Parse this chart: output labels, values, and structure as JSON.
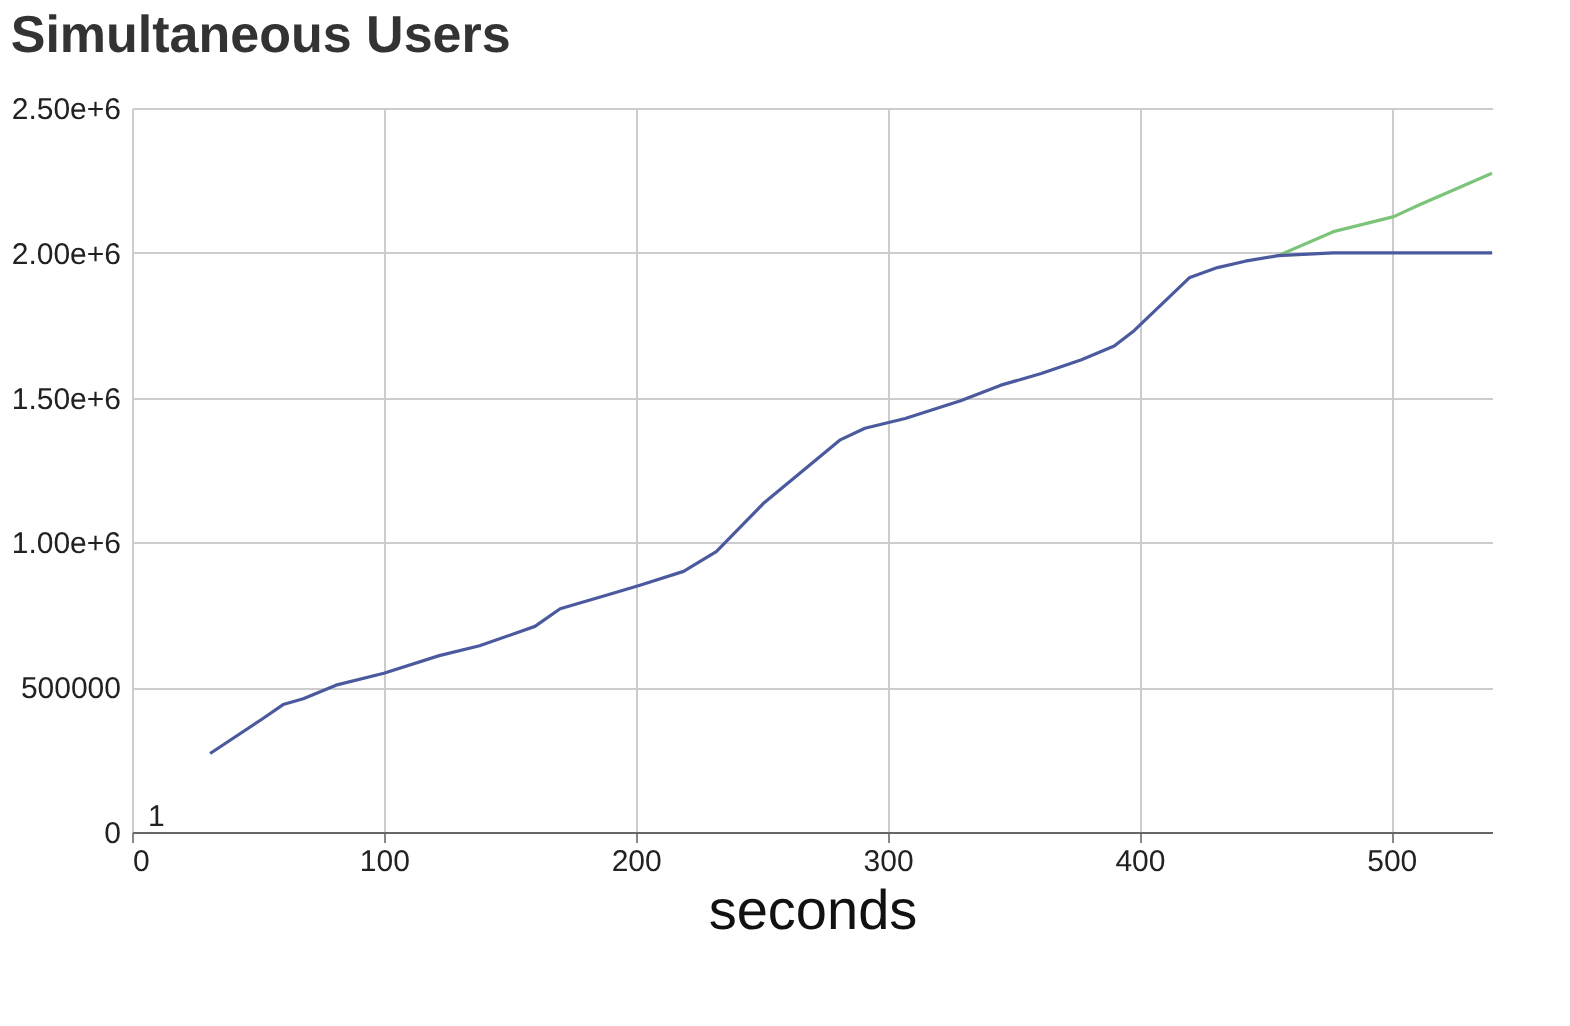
{
  "chart_data": {
    "type": "line",
    "title": "Simultaneous Users",
    "xlabel": "seconds",
    "annotations": [
      "1"
    ],
    "series": [
      {
        "color": "#4b5a9e",
        "x": [
          31,
          52,
          60,
          68,
          81,
          100,
          122,
          138,
          160,
          170,
          189,
          202,
          219,
          232,
          251,
          281,
          291,
          307,
          329,
          345,
          361,
          377,
          390,
          398,
          420,
          431,
          442,
          455,
          477,
          501,
          540
        ],
        "values": [
          271000,
          392000,
          440000,
          460000,
          507000,
          548000,
          609000,
          643000,
          710000,
          771000,
          819000,
          853000,
          900000,
          968000,
          1137000,
          1353000,
          1394000,
          1428000,
          1489000,
          1543000,
          1583000,
          1631000,
          1678000,
          1732000,
          1915000,
          1949000,
          1971000,
          1990000,
          2000000,
          2000000,
          2000000
        ]
      },
      {
        "color": "#7cc47a",
        "x": [
          455,
          477,
          501,
          511,
          540
        ],
        "values": [
          1990000,
          2073000,
          2125000,
          2165000,
          2275000
        ]
      }
    ],
    "xlim": [
      0,
      540
    ],
    "xticks": [
      0,
      100,
      200,
      300,
      400,
      500
    ],
    "ylim": [
      0,
      2500000
    ],
    "yticks": [
      0,
      500000,
      {
        "value": 1000000,
        "label": "1.00e+6"
      },
      {
        "value": 1500000,
        "label": "1.50e+6"
      },
      {
        "value": 2000000,
        "label": "2.00e+6"
      },
      {
        "value": 2500000,
        "label": "2.50e+6"
      }
    ],
    "grid": true,
    "legend": false,
    "marker": "none",
    "line_style": "solid"
  }
}
